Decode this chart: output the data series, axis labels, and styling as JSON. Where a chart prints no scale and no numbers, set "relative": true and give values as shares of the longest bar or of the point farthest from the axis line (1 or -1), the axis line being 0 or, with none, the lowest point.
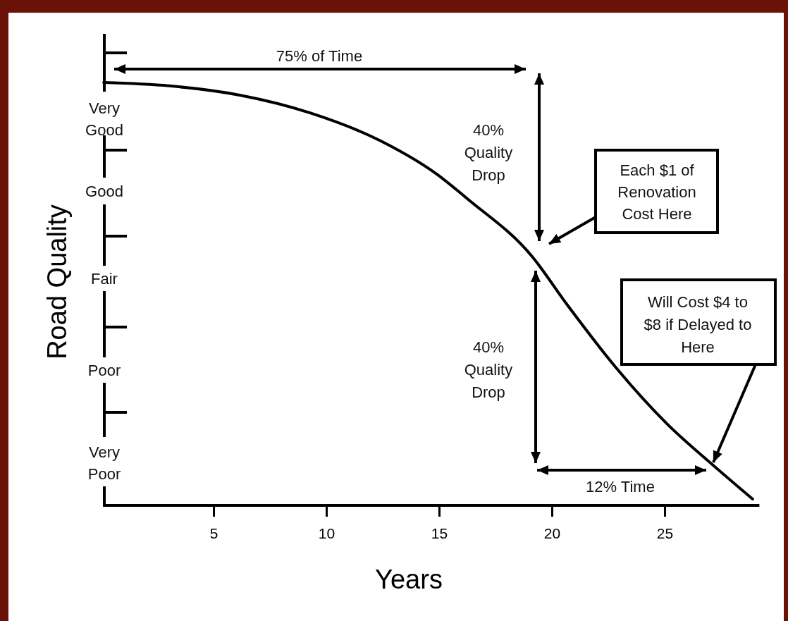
{
  "chart_data": {
    "type": "line",
    "relative": true,
    "xlabel": "Years",
    "ylabel": "Road Quality",
    "x": [
      0.13,
      3.03,
      6.16,
      9.28,
      12.4,
      14.9,
      16.3,
      19.1,
      20.7,
      22.9,
      25.1,
      27.3,
      28.9
    ],
    "series": [
      {
        "color": "#000000",
        "values": [
          1.0,
          0.992,
          0.97,
          0.928,
          0.862,
          0.783,
          0.723,
          0.59,
          0.473,
          0.322,
          0.193,
          0.088,
          0.015
        ]
      }
    ],
    "xlim": [
      0,
      29.2
    ],
    "xticks": [
      5,
      10,
      15,
      20,
      25
    ],
    "annotations": [
      "Very Good",
      "Good",
      "Fair",
      "Poor",
      "Very Poor",
      "75% of Time",
      "40% Quality Drop",
      "Each $1 of Renovation Cost Here",
      "Will Cost $4 to $8 if Delayed to Here",
      "40% Quality Drop",
      "12% Time"
    ],
    "grid": false,
    "legend": false,
    "marker": "none",
    "line_style": "solid"
  }
}
